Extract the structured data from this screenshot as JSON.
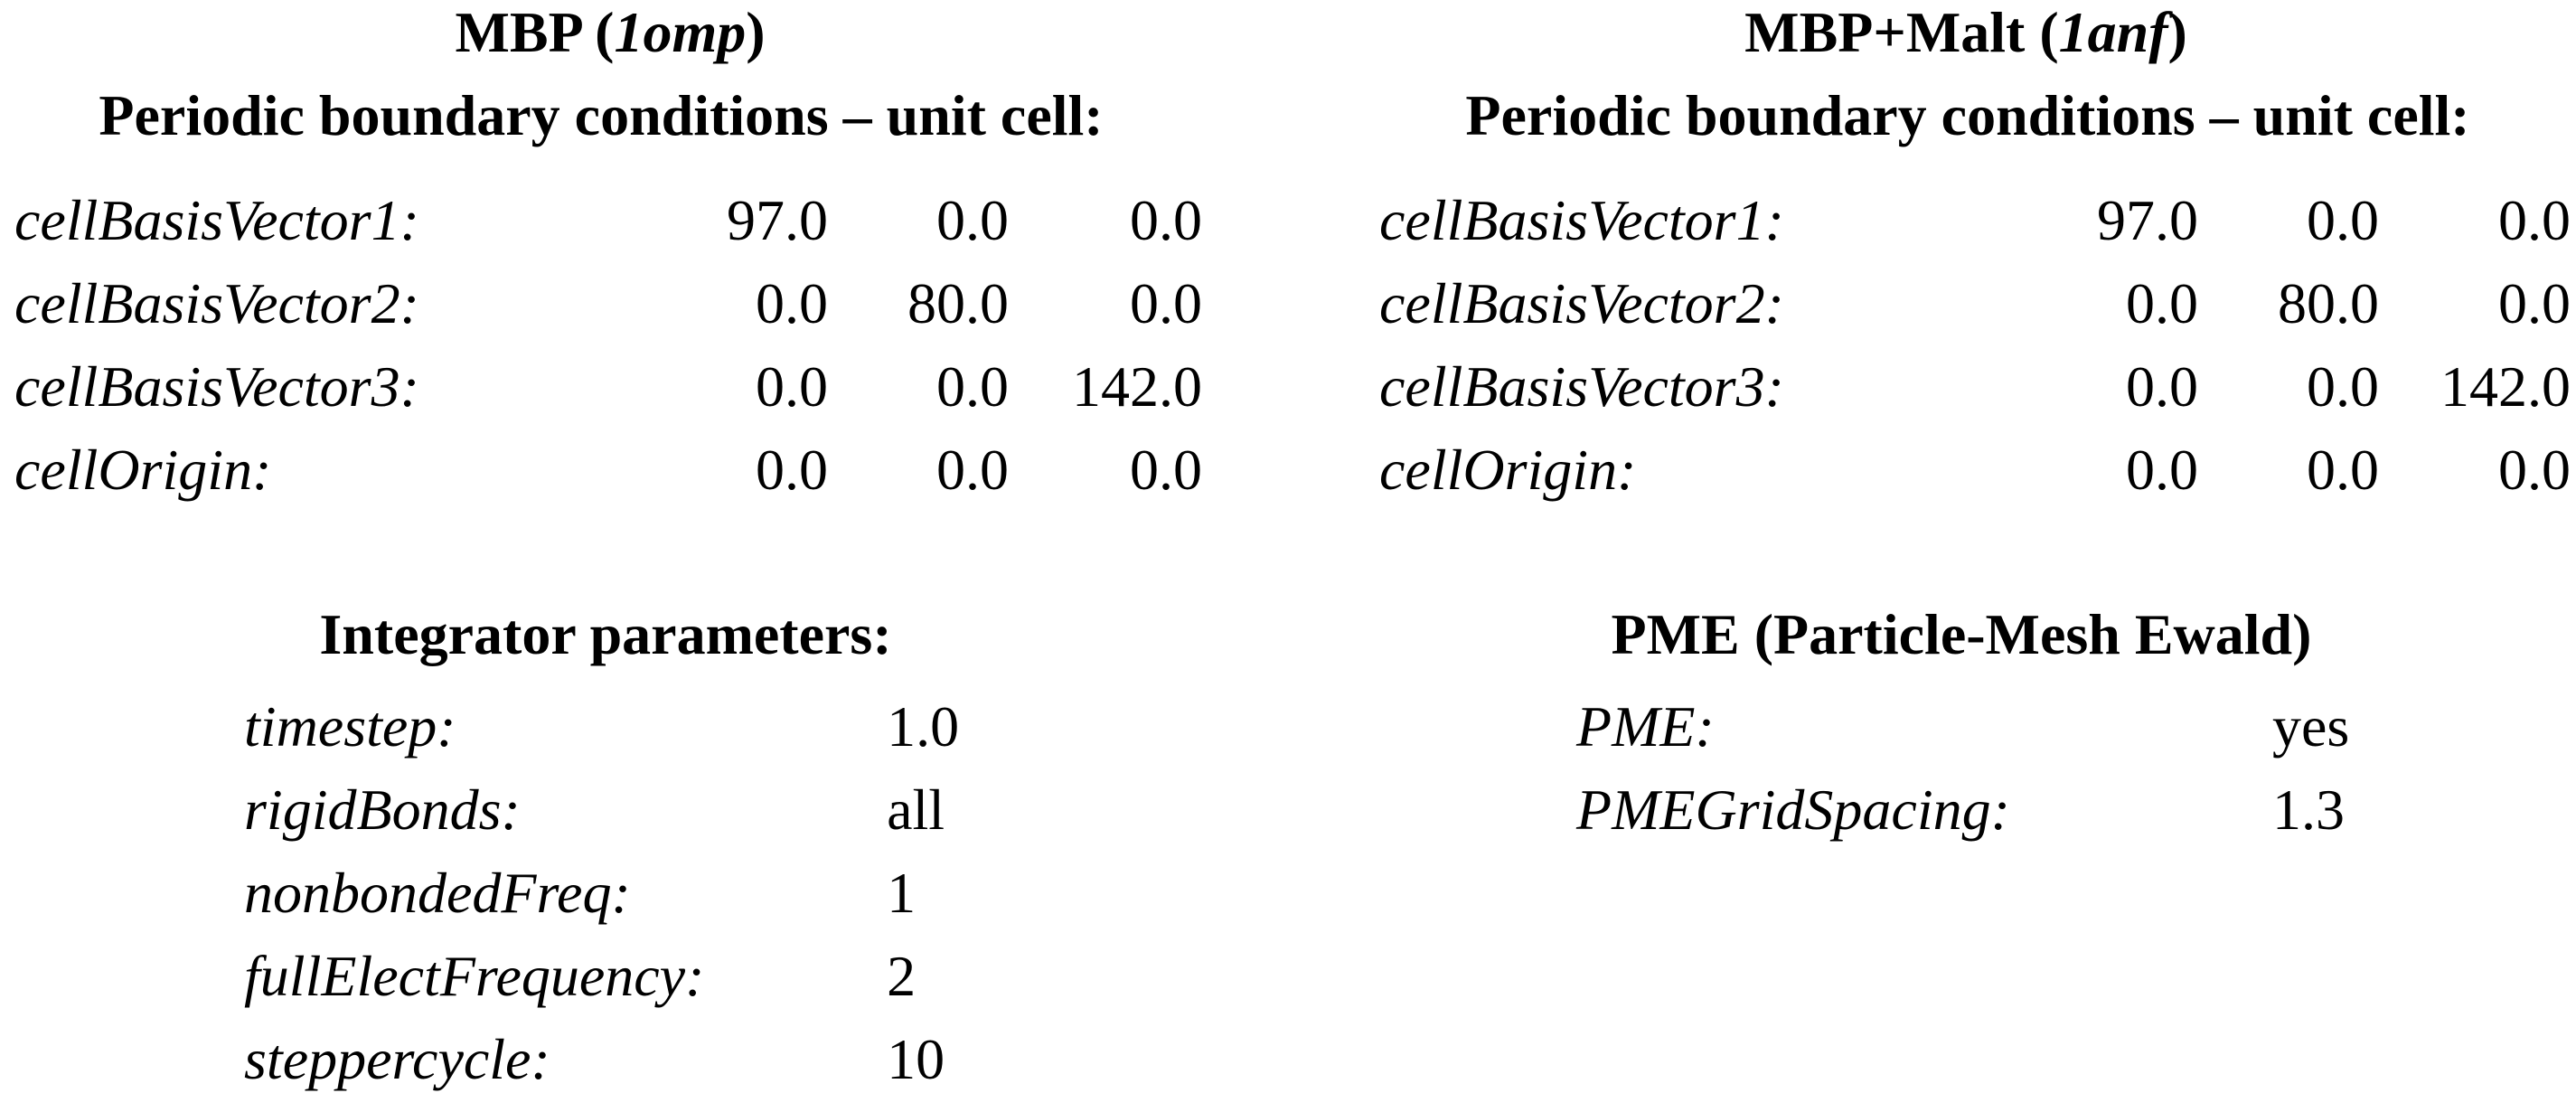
{
  "mbp": {
    "title_prefix": "MBP (",
    "title_code": "1omp",
    "title_suffix": ")",
    "subtitle": "Periodic boundary conditions – unit cell:",
    "rows": [
      {
        "label": "cellBasisVector1:",
        "v1": "97.0",
        "v2": "0.0",
        "v3": "0.0"
      },
      {
        "label": "cellBasisVector2:",
        "v1": "0.0",
        "v2": "80.0",
        "v3": "0.0"
      },
      {
        "label": "cellBasisVector3:",
        "v1": "0.0",
        "v2": "0.0",
        "v3": "142.0"
      },
      {
        "label": "cellOrigin:",
        "v1": "0.0",
        "v2": "0.0",
        "v3": "0.0"
      }
    ]
  },
  "mbp_malt": {
    "title_prefix": "MBP+Malt (",
    "title_code": "1anf",
    "title_suffix": ")",
    "subtitle": "Periodic boundary conditions – unit cell:",
    "rows": [
      {
        "label": "cellBasisVector1:",
        "v1": "97.0",
        "v2": "0.0",
        "v3": "0.0"
      },
      {
        "label": "cellBasisVector2:",
        "v1": "0.0",
        "v2": "80.0",
        "v3": "0.0"
      },
      {
        "label": "cellBasisVector3:",
        "v1": "0.0",
        "v2": "0.0",
        "v3": "142.0"
      },
      {
        "label": "cellOrigin:",
        "v1": "0.0",
        "v2": "0.0",
        "v3": "0.0"
      }
    ]
  },
  "integrator": {
    "title": "Integrator parameters:",
    "rows": [
      {
        "label": "timestep:",
        "value": "1.0"
      },
      {
        "label": "rigidBonds:",
        "value": "all"
      },
      {
        "label": "nonbondedFreq:",
        "value": "1"
      },
      {
        "label": "fullElectFrequency:",
        "value": "2"
      },
      {
        "label": "steppercycle:",
        "value": "10"
      }
    ]
  },
  "pme": {
    "title": "PME (Particle-Mesh Ewald)",
    "rows": [
      {
        "label": "PME:",
        "value": "yes"
      },
      {
        "label": "PMEGridSpacing:",
        "value": "1.3"
      }
    ]
  }
}
